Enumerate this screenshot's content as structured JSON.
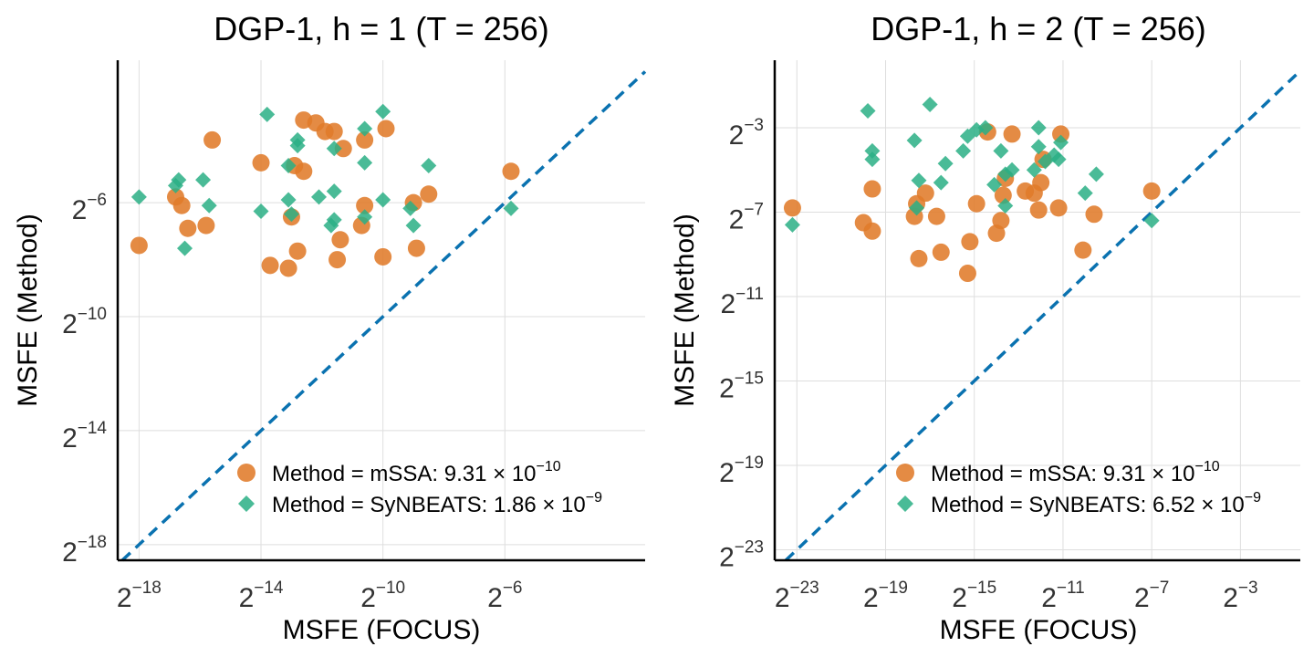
{
  "colors": {
    "mssa": "#e07b2a",
    "synbeats": "#2aaf85",
    "reference": "#0a72b0"
  },
  "chart_data": [
    {
      "type": "scatter",
      "title": "DGP-1, h = 1 (T = 256)",
      "xlabel": "MSFE (FOCUS)",
      "ylabel": "MSFE (Method)",
      "log_base": 2,
      "xlim_log2": [
        -18.7,
        -1.4
      ],
      "ylim_log2": [
        -18.55,
        -1.0
      ],
      "xticks_log2": [
        -18,
        -14,
        -10,
        -6
      ],
      "yticks_log2": [
        -18,
        -14,
        -10,
        -6
      ],
      "reference_line": "y = x",
      "legend_position": "bottom-right",
      "series": [
        {
          "name": "Method = mSSA",
          "stat_base": ": 9.31 × 10",
          "stat_exp": "−10",
          "marker": "circle",
          "color": "#e07b2a",
          "points_log2": [
            [
              -18,
              -7.5
            ],
            [
              -16.8,
              -5.8
            ],
            [
              -16.6,
              -6.1
            ],
            [
              -16.4,
              -6.9
            ],
            [
              -15.8,
              -6.8
            ],
            [
              -15.6,
              -3.8
            ],
            [
              -14,
              -4.6
            ],
            [
              -13.7,
              -8.2
            ],
            [
              -13.1,
              -8.3
            ],
            [
              -13,
              -6.5
            ],
            [
              -12.9,
              -4.7
            ],
            [
              -12.8,
              -7.7
            ],
            [
              -12.6,
              -4.9
            ],
            [
              -12.6,
              -3.1
            ],
            [
              -12.2,
              -3.2
            ],
            [
              -11.9,
              -3.5
            ],
            [
              -11.6,
              -3.5
            ],
            [
              -11.5,
              -8.0
            ],
            [
              -11.4,
              -7.3
            ],
            [
              -11.3,
              -4.1
            ],
            [
              -10.7,
              -6.8
            ],
            [
              -10.6,
              -6.1
            ],
            [
              -10.6,
              -3.8
            ],
            [
              -10.0,
              -7.9
            ],
            [
              -9.9,
              -3.4
            ],
            [
              -9.0,
              -6.0
            ],
            [
              -8.9,
              -7.6
            ],
            [
              -8.5,
              -5.7
            ],
            [
              -5.8,
              -4.9
            ]
          ]
        },
        {
          "name": "Method = SyNBEATS",
          "stat_base": ": 1.86 × 10",
          "stat_exp": "−9",
          "marker": "diamond",
          "color": "#2aaf85",
          "points_log2": [
            [
              -18,
              -5.8
            ],
            [
              -16.8,
              -5.4
            ],
            [
              -16.7,
              -5.2
            ],
            [
              -16.5,
              -7.6
            ],
            [
              -15.9,
              -5.2
            ],
            [
              -15.7,
              -6.1
            ],
            [
              -14,
              -6.3
            ],
            [
              -13.8,
              -2.9
            ],
            [
              -13.1,
              -5.9
            ],
            [
              -13.1,
              -4.7
            ],
            [
              -13.0,
              -6.4
            ],
            [
              -12.8,
              -3.8
            ],
            [
              -12.8,
              -4.0
            ],
            [
              -12.1,
              -5.8
            ],
            [
              -11.7,
              -6.8
            ],
            [
              -11.6,
              -4.1
            ],
            [
              -11.6,
              -5.6
            ],
            [
              -11.6,
              -6.6
            ],
            [
              -10.6,
              -6.5
            ],
            [
              -10.6,
              -4.6
            ],
            [
              -10.6,
              -3.4
            ],
            [
              -10.0,
              -5.9
            ],
            [
              -10.0,
              -2.8
            ],
            [
              -9.1,
              -6.2
            ],
            [
              -9.0,
              -6.8
            ],
            [
              -8.5,
              -4.7
            ],
            [
              -5.8,
              -6.2
            ]
          ]
        }
      ]
    },
    {
      "type": "scatter",
      "title": "DGP-1, h = 2 (T = 256)",
      "xlabel": "MSFE (FOCUS)",
      "ylabel": "MSFE (Method)",
      "log_base": 2,
      "xlim_log2": [
        -24,
        -0.3
      ],
      "ylim_log2": [
        -23.5,
        0.2
      ],
      "xticks_log2": [
        -23,
        -19,
        -15,
        -11,
        -7,
        -3
      ],
      "yticks_log2": [
        -23,
        -19,
        -15,
        -11,
        -7,
        -3
      ],
      "reference_line": "y = x",
      "legend_position": "bottom-right",
      "series": [
        {
          "name": "Method = mSSA",
          "stat_base": ": 9.31 × 10",
          "stat_exp": "−10",
          "marker": "circle",
          "color": "#e07b2a",
          "points_log2": [
            [
              -23.2,
              -6.8
            ],
            [
              -20.0,
              -7.5
            ],
            [
              -19.6,
              -7.9
            ],
            [
              -19.6,
              -5.9
            ],
            [
              -17.7,
              -7.2
            ],
            [
              -17.6,
              -6.6
            ],
            [
              -17.5,
              -9.2
            ],
            [
              -17.2,
              -6.1
            ],
            [
              -16.7,
              -7.2
            ],
            [
              -16.5,
              -8.9
            ],
            [
              -15.3,
              -9.9
            ],
            [
              -15.2,
              -8.4
            ],
            [
              -14.9,
              -6.6
            ],
            [
              -14.4,
              -3.2
            ],
            [
              -14.0,
              -8.0
            ],
            [
              -13.8,
              -7.4
            ],
            [
              -13.7,
              -6.2
            ],
            [
              -13.6,
              -5.4
            ],
            [
              -13.3,
              -3.3
            ],
            [
              -12.7,
              -6.0
            ],
            [
              -12.3,
              -6.1
            ],
            [
              -12.1,
              -6.9
            ],
            [
              -12.0,
              -5.6
            ],
            [
              -11.9,
              -4.5
            ],
            [
              -11.2,
              -6.8
            ],
            [
              -11.1,
              -3.3
            ],
            [
              -10.1,
              -8.8
            ],
            [
              -9.6,
              -7.1
            ],
            [
              -7.0,
              -6.0
            ]
          ]
        },
        {
          "name": "Method = SyNBEATS",
          "stat_base": ": 6.52 × 10",
          "stat_exp": "−9",
          "marker": "diamond",
          "color": "#2aaf85",
          "points_log2": [
            [
              -23.2,
              -7.6
            ],
            [
              -19.8,
              -2.2
            ],
            [
              -19.6,
              -4.1
            ],
            [
              -19.6,
              -4.5
            ],
            [
              -17.7,
              -3.6
            ],
            [
              -17.6,
              -6.8
            ],
            [
              -17.5,
              -5.5
            ],
            [
              -17.0,
              -1.9
            ],
            [
              -16.5,
              -5.6
            ],
            [
              -16.3,
              -4.7
            ],
            [
              -15.5,
              -4.1
            ],
            [
              -15.3,
              -3.4
            ],
            [
              -14.9,
              -3.1
            ],
            [
              -14.5,
              -3.0
            ],
            [
              -14.1,
              -5.7
            ],
            [
              -13.8,
              -4.1
            ],
            [
              -13.6,
              -5.2
            ],
            [
              -13.6,
              -6.7
            ],
            [
              -13.3,
              -5.0
            ],
            [
              -12.3,
              -5.0
            ],
            [
              -12.1,
              -3.9
            ],
            [
              -12.1,
              -3.0
            ],
            [
              -11.8,
              -4.6
            ],
            [
              -11.4,
              -4.3
            ],
            [
              -11.2,
              -4.5
            ],
            [
              -11.1,
              -3.7
            ],
            [
              -10.0,
              -6.1
            ],
            [
              -9.5,
              -5.2
            ],
            [
              -7.0,
              -7.4
            ]
          ]
        }
      ]
    }
  ]
}
